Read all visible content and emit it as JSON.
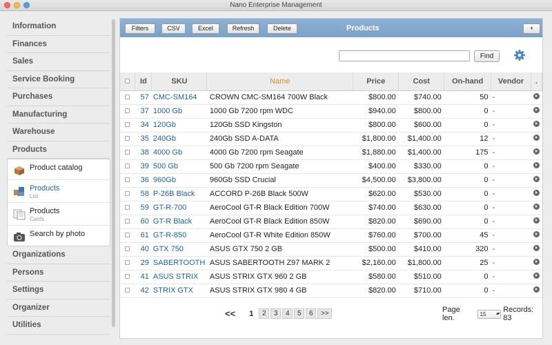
{
  "window": {
    "title": "Nano Enterprise Management"
  },
  "sidebar": {
    "items_top": [
      "Information",
      "Finances",
      "Sales",
      "Service Booking",
      "Purchases",
      "Manufacturing",
      "Warehouse",
      "Products"
    ],
    "sub_items": [
      {
        "label": "Product catalog",
        "sub": "",
        "icon": "box-icon"
      },
      {
        "label": "Products",
        "sub": "List",
        "icon": "product-list-icon"
      },
      {
        "label": "Products",
        "sub": "Cards",
        "icon": "product-cards-icon"
      },
      {
        "label": "Search by photo",
        "sub": "",
        "icon": "camera-icon"
      }
    ],
    "items_bottom": [
      "Organizations",
      "Persons",
      "Settings",
      "Organizer",
      "Utilities"
    ]
  },
  "toolbar": {
    "title": "Products",
    "buttons": [
      "Filters",
      "CSV",
      "Excel",
      "Refresh",
      "Delete"
    ],
    "add_label": "+"
  },
  "search": {
    "value": "",
    "placeholder": "",
    "find_label": "Find"
  },
  "table": {
    "columns": [
      "Id",
      "SKU",
      "Name",
      "Price",
      "Cost",
      "On-hand",
      "Vendor",
      "."
    ],
    "sorted_column": "Name",
    "rows": [
      [
        "57",
        "CMC-SM164",
        "CROWN CMC-SM164 700W Black",
        "$800.00",
        "$740.00",
        "50",
        "-"
      ],
      [
        "37",
        "1000 Gb",
        "1000 Gb 7200 rpm WDC",
        "$940.00",
        "$800.00",
        "0",
        "-"
      ],
      [
        "34",
        "120Gb",
        "120Gb SSD Kingston",
        "$800.00",
        "$600.00",
        "0",
        "-"
      ],
      [
        "35",
        "240Gb",
        "240Gb SSD A-DATA",
        "$1,800.00",
        "$1,400.00",
        "12",
        "-"
      ],
      [
        "38",
        "4000 Gb",
        "4000 Gb 7200 rpm Seagate",
        "$1,880.00",
        "$1,400.00",
        "175",
        "-"
      ],
      [
        "39",
        "500 Gb",
        "500 Gb 7200 rpm Seagate",
        "$400.00",
        "$330.00",
        "0",
        "-"
      ],
      [
        "36",
        "960Gb",
        "960Gb SSD Crucial",
        "$4,500.00",
        "$3,800.00",
        "0",
        "-"
      ],
      [
        "58",
        "P-26B Black",
        "ACCORD P-26B Black 500W",
        "$620.00",
        "$530.00",
        "0",
        "-"
      ],
      [
        "59",
        "GT-R-700",
        "AeroCool GT-R Black Edition 700W",
        "$740.00",
        "$630.00",
        "0",
        "-"
      ],
      [
        "60",
        "GT-R Black",
        "AeroCool GT-R Black Edition 850W",
        "$820.00",
        "$690.00",
        "0",
        "-"
      ],
      [
        "61",
        "GT-R-850",
        "AeroCool GT-R White Edition 850W",
        "$760.00",
        "$700.00",
        "45",
        "-"
      ],
      [
        "40",
        "GTX 750",
        "ASUS GTX 750 2 GB",
        "$500.00",
        "$410.00",
        "320",
        "-"
      ],
      [
        "29",
        "SABERTOOTH",
        "ASUS SABERTOOTH Z97 MARK 2",
        "$2,160.00",
        "$1,800.00",
        "25",
        "-"
      ],
      [
        "41",
        "ASUS STRIX",
        "ASUS STRIX GTX 960 2 GB",
        "$580.00",
        "$510.00",
        "0",
        "-"
      ],
      [
        "42",
        "STRIX GTX",
        "ASUS STRIX GTX 980 4 GB",
        "$820.00",
        "$710.00",
        "0",
        "-"
      ]
    ]
  },
  "pager": {
    "first": "<<",
    "current": "1",
    "pages": [
      "2",
      "3",
      "4",
      "5",
      "6"
    ],
    "next": ">>",
    "page_len_label": "Page len.",
    "page_len_value": "15",
    "records_label": "Records: 83"
  },
  "colors": {
    "accent": "#1f5f9a",
    "toolbar": "#7aa1c8",
    "sorted_header": "#d98d2e"
  }
}
